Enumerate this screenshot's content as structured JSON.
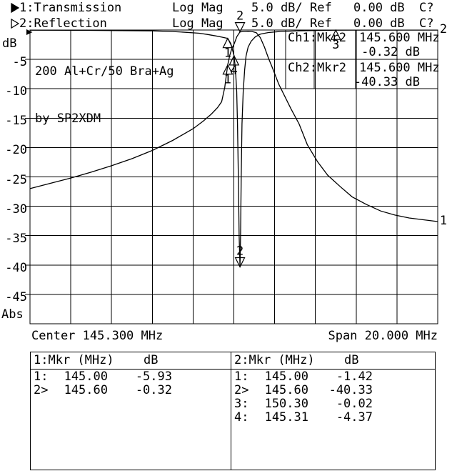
{
  "colors": {
    "fg": "#000000",
    "bg": "#ffffff"
  },
  "header": {
    "rows": [
      {
        "arrow": "filled",
        "trace": "1:Transmission",
        "format": "Log Mag",
        "scale": "5.0 dB/",
        "ref_label": "Ref",
        "ref_value": "0.00 dB",
        "cal": "C?"
      },
      {
        "arrow": "hollow",
        "trace": "2:Reflection",
        "format": "Log Mag",
        "scale": "5.0 dB/",
        "ref_label": "Ref",
        "ref_value": "0.00 dB",
        "cal": "C?"
      }
    ]
  },
  "plot": {
    "y_unit_label": "dB",
    "y_bottom_label": "Abs",
    "annotation": {
      "line1": "200 Al+Cr/50 Bra+Ag",
      "line2": "by SP2XDM"
    },
    "center_label": "Center 145.300 MHz",
    "span_label": "Span 20.000 MHz",
    "readout_rows": [
      {
        "ch": "Ch1:",
        "mkr": "Mkr2",
        "freq": "145.600 MHz",
        "value": "-0.32 dB"
      },
      {
        "ch": "Ch2:",
        "mkr": "Mkr2",
        "freq": "145.600 MHz",
        "value": "-40.33 dB"
      }
    ]
  },
  "chart_data": {
    "type": "line",
    "title": "200 Al+Cr/50 Bra+Ag by SP2XDM",
    "x_axis": {
      "center_mhz": 145.3,
      "span_mhz": 20.0,
      "range_mhz": [
        135.3,
        155.3
      ],
      "mhz_per_div": 2,
      "center_label": "Center 145.300 MHz",
      "span_label": "Span 20.000 MHz"
    },
    "y_axis": {
      "unit": "dB",
      "range": [
        -50,
        0
      ],
      "db_per_div": 5,
      "ticks": [
        -5,
        -10,
        -15,
        -20,
        -25,
        -30,
        -35,
        -40,
        -45
      ],
      "top_label": "dB",
      "bottom_label": "Abs"
    },
    "grid": "on",
    "series": [
      {
        "name": "1: Transmission (Log Mag 5.0 dB/, Ref 0.00 dB)",
        "end_label": "1",
        "points": [
          [
            135.3,
            -27.0
          ],
          [
            136.3,
            -26.1
          ],
          [
            137.3,
            -25.2
          ],
          [
            138.3,
            -24.2
          ],
          [
            139.3,
            -23.1
          ],
          [
            140.3,
            -21.9
          ],
          [
            141.3,
            -20.5
          ],
          [
            142.3,
            -18.8
          ],
          [
            143.3,
            -16.8
          ],
          [
            143.8,
            -15.5
          ],
          [
            144.2,
            -14.3
          ],
          [
            144.5,
            -13.2
          ],
          [
            144.7,
            -12.2
          ],
          [
            144.85,
            -9.8
          ],
          [
            145.0,
            -5.93
          ],
          [
            145.1,
            -4.3
          ],
          [
            145.2,
            -3.2
          ],
          [
            145.31,
            -2.4
          ],
          [
            145.45,
            -1.1
          ],
          [
            145.6,
            -0.32
          ],
          [
            145.8,
            -0.25
          ],
          [
            146.0,
            -0.22
          ],
          [
            146.2,
            -0.25
          ],
          [
            146.4,
            -0.45
          ],
          [
            146.6,
            -1.3
          ],
          [
            146.8,
            -2.9
          ],
          [
            147.0,
            -4.8
          ],
          [
            147.2,
            -6.5
          ],
          [
            147.5,
            -9.2
          ],
          [
            148.1,
            -13.4
          ],
          [
            148.5,
            -16.0
          ],
          [
            148.9,
            -19.5
          ],
          [
            149.4,
            -22.4
          ],
          [
            149.9,
            -24.7
          ],
          [
            150.5,
            -26.6
          ],
          [
            151.1,
            -28.4
          ],
          [
            151.8,
            -29.7
          ],
          [
            152.5,
            -30.8
          ],
          [
            153.2,
            -31.5
          ],
          [
            153.9,
            -32.0
          ],
          [
            154.6,
            -32.3
          ],
          [
            155.3,
            -32.6
          ]
        ]
      },
      {
        "name": "2: Reflection (Log Mag 5.0 dB/, Ref 0.00 dB)",
        "end_label": "2",
        "points": [
          [
            135.3,
            -0.02
          ],
          [
            137.3,
            -0.04
          ],
          [
            139.3,
            -0.08
          ],
          [
            141.3,
            -0.15
          ],
          [
            142.3,
            -0.25
          ],
          [
            143.0,
            -0.4
          ],
          [
            143.6,
            -0.55
          ],
          [
            144.0,
            -0.75
          ],
          [
            144.4,
            -1.0
          ],
          [
            144.7,
            -1.2
          ],
          [
            145.0,
            -1.42
          ],
          [
            145.15,
            -2.3
          ],
          [
            145.31,
            -4.37
          ],
          [
            145.38,
            -6.8
          ],
          [
            145.44,
            -10.5
          ],
          [
            145.48,
            -16.0
          ],
          [
            145.52,
            -25.0
          ],
          [
            145.56,
            -35.0
          ],
          [
            145.6,
            -40.33
          ],
          [
            145.63,
            -35.0
          ],
          [
            145.66,
            -25.0
          ],
          [
            145.7,
            -16.0
          ],
          [
            145.76,
            -10.5
          ],
          [
            145.83,
            -6.8
          ],
          [
            145.9,
            -4.4
          ],
          [
            146.0,
            -2.9
          ],
          [
            146.15,
            -1.9
          ],
          [
            146.35,
            -1.15
          ],
          [
            146.6,
            -0.7
          ],
          [
            147.0,
            -0.42
          ],
          [
            147.6,
            -0.24
          ],
          [
            148.5,
            -0.13
          ],
          [
            149.4,
            -0.07
          ],
          [
            150.3,
            -0.02
          ],
          [
            151.5,
            -0.01
          ],
          [
            153.0,
            -0.01
          ],
          [
            155.3,
            -0.01
          ]
        ]
      }
    ],
    "markers": [
      {
        "trace": 1,
        "label": "1",
        "freq_mhz": 145.0,
        "db": -5.93,
        "style": "below"
      },
      {
        "trace": 1,
        "label": "2",
        "freq_mhz": 145.6,
        "db": -0.32,
        "style": "above"
      },
      {
        "trace": 2,
        "label": "1",
        "freq_mhz": 145.0,
        "db": -1.42,
        "style": "below"
      },
      {
        "trace": 2,
        "label": "2",
        "freq_mhz": 145.6,
        "db": -40.33,
        "style": "above"
      },
      {
        "trace": 2,
        "label": "3",
        "freq_mhz": 150.3,
        "db": -0.02,
        "style": "below"
      },
      {
        "trace": 2,
        "label": "4",
        "freq_mhz": 145.31,
        "db": -4.37,
        "style": "below"
      }
    ]
  },
  "marker_tables": [
    {
      "title": "1:Mkr (MHz)",
      "db_header": "dB",
      "rows": [
        {
          "n": "1:",
          "freq": "145.00",
          "db": "-5.93"
        },
        {
          "n": "2>",
          "freq": "145.60",
          "db": "-0.32"
        }
      ]
    },
    {
      "title": "2:Mkr (MHz)",
      "db_header": "dB",
      "rows": [
        {
          "n": "1:",
          "freq": "145.00",
          "db": "-1.42"
        },
        {
          "n": "2>",
          "freq": "145.60",
          "db": "-40.33"
        },
        {
          "n": "3:",
          "freq": "150.30",
          "db": "-0.02"
        },
        {
          "n": "4:",
          "freq": "145.31",
          "db": "-4.37"
        }
      ]
    }
  ]
}
